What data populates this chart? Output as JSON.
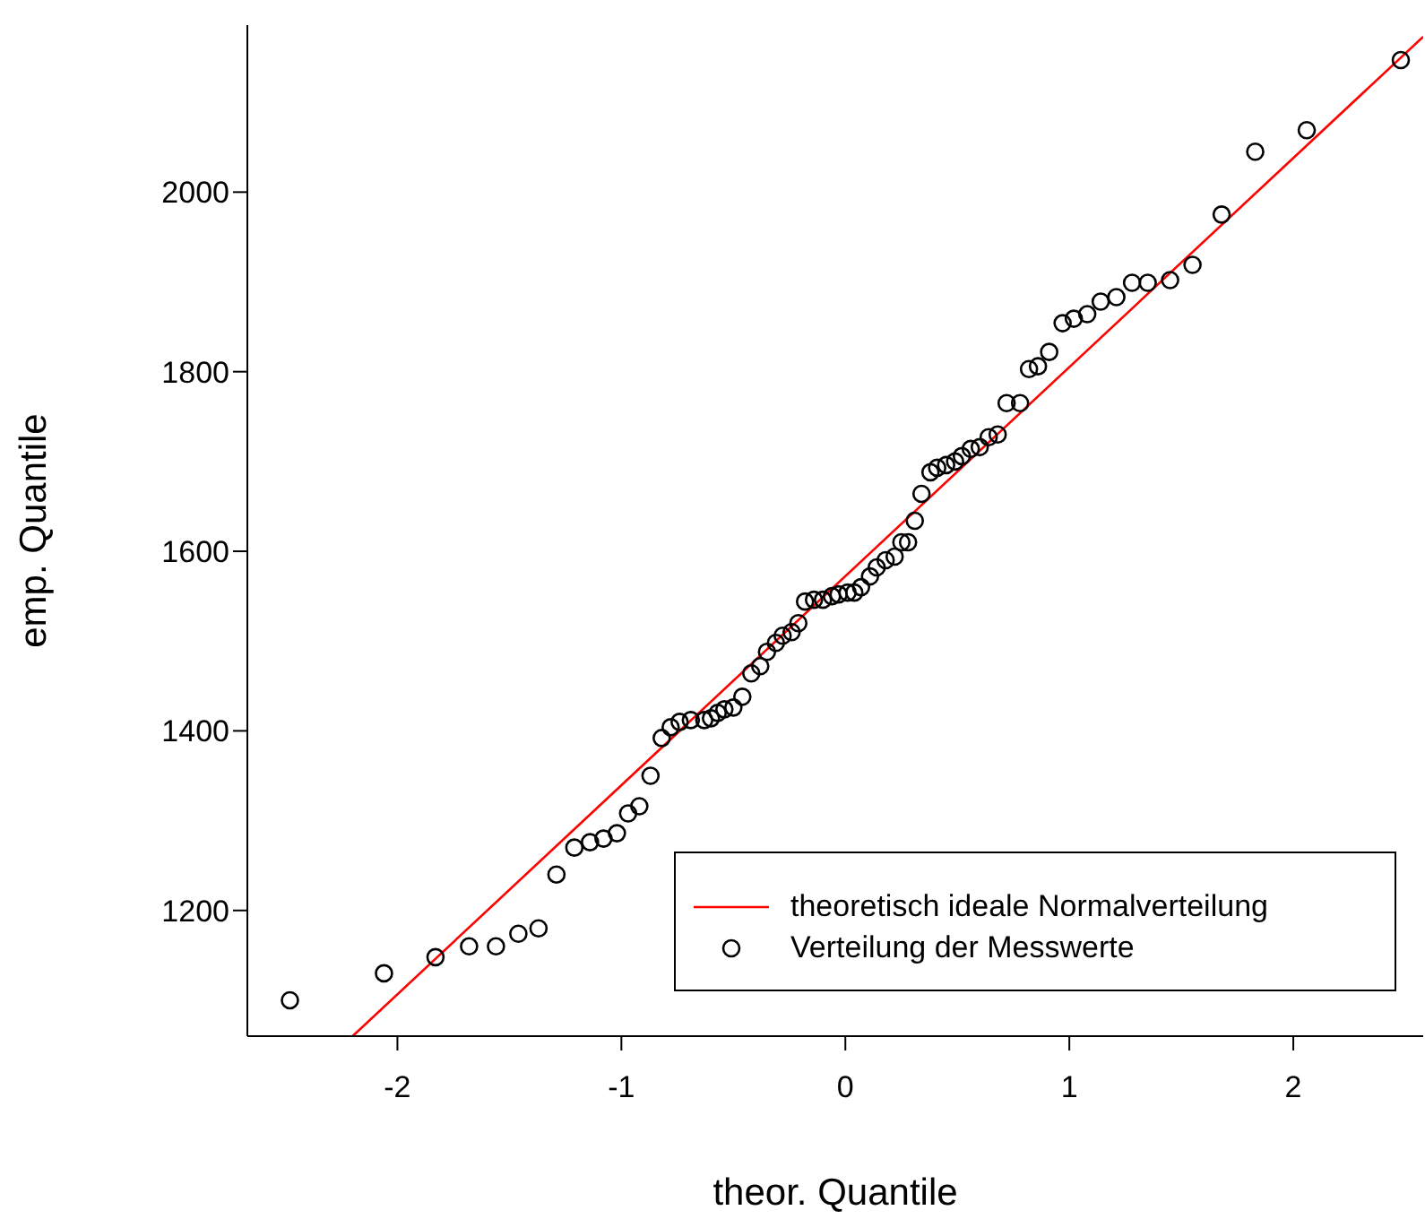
{
  "chart_data": {
    "type": "scatter",
    "xlabel": "theor. Quantile",
    "ylabel": "emp. Quantile",
    "xlim": [
      -2.67,
      2.58
    ],
    "ylim": [
      1060,
      2186
    ],
    "xticks": [
      -2,
      -1,
      0,
      1,
      2
    ],
    "yticks": [
      1200,
      1400,
      1600,
      1800,
      2000
    ],
    "grid": false,
    "legend": "bottom right",
    "marker": "circle",
    "series": [
      {
        "name": "theoretisch ideale Normalverteilung",
        "type": "line",
        "color": "#ff0000",
        "x": [
          -2.2,
          2.58
        ],
        "values": [
          1060,
          2173
        ],
        "marker": "none",
        "line_style": "solid"
      },
      {
        "name": "Verteilung der Messwerte",
        "type": "scatter",
        "color": "#000000",
        "x": [
          -2.48,
          -2.06,
          -1.83,
          -1.68,
          -1.56,
          -1.46,
          -1.37,
          -1.29,
          -1.21,
          -1.14,
          -1.08,
          -1.02,
          -0.97,
          -0.92,
          -0.87,
          -0.82,
          -0.78,
          -0.74,
          -0.69,
          -0.63,
          -0.6,
          -0.57,
          -0.54,
          -0.5,
          -0.46,
          -0.42,
          -0.38,
          -0.35,
          -0.31,
          -0.28,
          -0.24,
          -0.21,
          -0.18,
          -0.14,
          -0.1,
          -0.06,
          -0.03,
          0.01,
          0.04,
          0.07,
          0.11,
          0.14,
          0.18,
          0.22,
          0.25,
          0.28,
          0.31,
          0.34,
          0.38,
          0.41,
          0.45,
          0.49,
          0.52,
          0.56,
          0.6,
          0.64,
          0.68,
          0.72,
          0.78,
          0.82,
          0.86,
          0.91,
          0.97,
          1.02,
          1.08,
          1.14,
          1.21,
          1.28,
          1.35,
          1.45,
          1.55,
          1.68,
          1.83,
          2.06,
          2.48
        ],
        "values": [
          1100,
          1130,
          1148,
          1160,
          1160,
          1174,
          1180,
          1240,
          1270,
          1276,
          1280,
          1286,
          1308,
          1316,
          1350,
          1392,
          1404,
          1410,
          1412,
          1412,
          1414,
          1420,
          1424,
          1426,
          1438,
          1464,
          1472,
          1488,
          1498,
          1506,
          1510,
          1520,
          1544,
          1546,
          1546,
          1550,
          1552,
          1554,
          1554,
          1560,
          1572,
          1582,
          1590,
          1594,
          1610,
          1610,
          1634,
          1664,
          1688,
          1693,
          1696,
          1700,
          1706,
          1714,
          1716,
          1727,
          1730,
          1765,
          1765,
          1803,
          1806,
          1822,
          1854,
          1859,
          1864,
          1878,
          1883,
          1899,
          1899,
          1902,
          1919,
          1975,
          2045,
          2069,
          2147
        ]
      }
    ]
  }
}
